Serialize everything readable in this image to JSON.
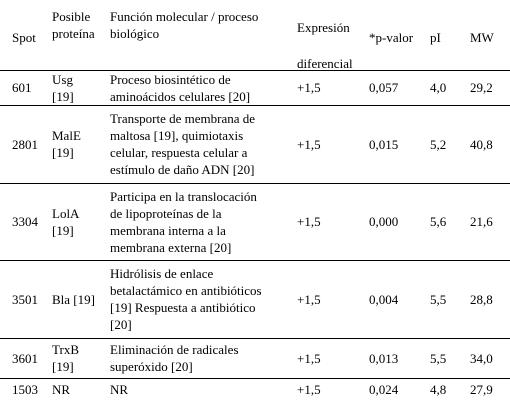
{
  "table": {
    "headers": {
      "spot": "Spot",
      "protein": "Posible\nproteína",
      "function": "Función molecular / proceso\nbiológico",
      "expression": "Expresión\ndiferencial",
      "pvalue": "*p-valor",
      "pi": "pI",
      "mw": "MW"
    },
    "rows": [
      {
        "spot": "601",
        "protein": "Usg\n[19]",
        "function": "Proceso biosintético de\naminoácidos celulares [20]",
        "expression": "+1,5",
        "pvalue": "0,057",
        "pi": "4,0",
        "mw": "29,2"
      },
      {
        "spot": "2801",
        "protein": "MalE\n[19]",
        "function": "Transporte de membrana de\nmaltosa [19], quimiotaxis\ncelular, respuesta celular a\nestímulo de daño ADN [20]",
        "expression": "+1,5",
        "pvalue": "0,015",
        "pi": "5,2",
        "mw": "40,8"
      },
      {
        "spot": "3304",
        "protein": "LolA\n[19]",
        "function": "Participa en la translocación\nde lipoproteínas de la\nmembrana interna a la\nmembrana externa [20]",
        "expression": "+1,5",
        "pvalue": "0,000",
        "pi": "5,6",
        "mw": "21,6"
      },
      {
        "spot": "3501",
        "protein": "Bla [19]",
        "function": "Hidrólisis de enlace\nbetalactámico en antibióticos\n[19] Respuesta a antibiótico\n[20]",
        "expression": "+1,5",
        "pvalue": "0,004",
        "pi": "5,5",
        "mw": "28,8"
      },
      {
        "spot": "3601",
        "protein": "TrxB\n[19]",
        "function": "Eliminación de radicales\nsuperóxido [20]",
        "expression": "+1,5",
        "pvalue": "0,013",
        "pi": "5,5",
        "mw": "34,0"
      },
      {
        "spot": "1503",
        "protein": "NR",
        "function": "NR",
        "expression": "+1,5",
        "pvalue": "0,024",
        "pi": "4,8",
        "mw": "27,9"
      }
    ]
  }
}
